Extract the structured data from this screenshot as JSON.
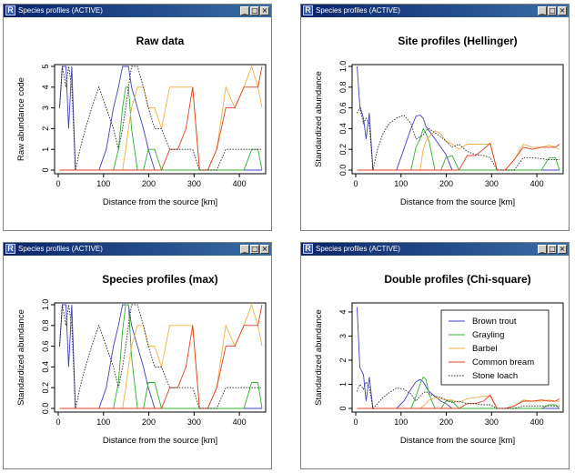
{
  "windows": [
    {
      "title": "Species profiles (ACTIVE)"
    },
    {
      "title": "Species profiles (ACTIVE)"
    },
    {
      "title": "Species profiles (ACTIVE)"
    },
    {
      "title": "Species profiles (ACTIVE)"
    }
  ],
  "window_buttons": {
    "minimize": "_",
    "maximize": "□",
    "close": "×"
  },
  "app_icon_letter": "R",
  "legend": {
    "entries": [
      "Brown trout",
      "Grayling",
      "Barbel",
      "Common bream",
      "Stone loach"
    ]
  },
  "chart_data": [
    {
      "type": "line",
      "title": "Raw data",
      "xlabel": "Distance from the source [km]",
      "ylabel": "Raw abundance code",
      "xlim": [
        0,
        450
      ],
      "ylim": [
        0,
        5
      ],
      "xticks": [
        0,
        100,
        200,
        300,
        400
      ],
      "yticks": [
        0,
        1,
        2,
        3,
        4,
        5
      ],
      "grid": false,
      "x": [
        3,
        9,
        17,
        23,
        30,
        38,
        48,
        60,
        74,
        90,
        106,
        122,
        133,
        142,
        149,
        155,
        162,
        175,
        188,
        199,
        213,
        228,
        246,
        264,
        282,
        297,
        312,
        330,
        350,
        370,
        390,
        410,
        427,
        441,
        450
      ],
      "series": [
        {
          "color": "#4040c0",
          "dash": "solid",
          "values": [
            3,
            5,
            5,
            2,
            5,
            0,
            0,
            0,
            0,
            0,
            1,
            3,
            4,
            5,
            5,
            5,
            4,
            3,
            2,
            1,
            0,
            0,
            0,
            0,
            0,
            0,
            0,
            0,
            0,
            0,
            0,
            0,
            0,
            0,
            0
          ]
        },
        {
          "color": "#30b030",
          "dash": "solid",
          "values": [
            0,
            0,
            0,
            0,
            0,
            0,
            0,
            0,
            0,
            0,
            0,
            0,
            1,
            3,
            4,
            4,
            2,
            0,
            0,
            1,
            1,
            0,
            0,
            0,
            0,
            0,
            0,
            0,
            0,
            0,
            0,
            0,
            1,
            1,
            0
          ]
        },
        {
          "color": "#f0b040",
          "dash": "solid",
          "values": [
            0,
            0,
            0,
            0,
            0,
            0,
            0,
            0,
            0,
            0,
            0,
            0,
            0,
            0,
            1,
            2,
            3,
            4,
            4,
            3,
            3,
            2,
            4,
            4,
            4,
            4,
            0,
            0,
            1,
            4,
            3,
            4,
            5,
            4,
            3
          ]
        },
        {
          "color": "#e04020",
          "dash": "solid",
          "values": [
            0,
            0,
            0,
            0,
            0,
            0,
            0,
            0,
            0,
            0,
            0,
            0,
            0,
            0,
            0,
            0,
            0,
            0,
            0,
            0,
            0,
            0,
            1,
            1,
            2,
            4,
            0,
            0,
            1,
            3,
            3,
            4,
            4,
            4,
            5
          ]
        },
        {
          "color": "#222222",
          "dash": "dotted",
          "values": [
            3,
            5,
            4,
            5,
            4,
            0,
            1,
            2,
            3,
            4,
            3,
            2,
            1,
            2,
            3,
            4,
            5,
            5,
            4,
            3,
            2,
            2,
            1,
            1,
            1,
            1,
            0,
            0,
            0,
            1,
            1,
            1,
            1,
            1,
            1
          ]
        }
      ]
    },
    {
      "type": "line",
      "title": "Site profiles (Hellinger)",
      "xlabel": "Distance from the source [km]",
      "ylabel": "Standardized abundance",
      "xlim": [
        0,
        450
      ],
      "ylim": [
        0,
        1
      ],
      "xticks": [
        0,
        100,
        200,
        300,
        400
      ],
      "yticks": [
        0.0,
        0.2,
        0.4,
        0.6,
        0.8,
        1.0
      ],
      "ytick_labels": [
        "0.0",
        "0.2",
        "0.4",
        "0.6",
        "0.8",
        "1.0"
      ],
      "grid": false,
      "x": [
        3,
        9,
        17,
        23,
        30,
        38,
        48,
        60,
        74,
        90,
        106,
        122,
        133,
        142,
        149,
        155,
        162,
        175,
        188,
        199,
        213,
        228,
        246,
        264,
        282,
        297,
        312,
        330,
        350,
        370,
        390,
        410,
        427,
        441,
        450
      ],
      "series": [
        {
          "color": "#4040c0",
          "dash": "solid",
          "values": [
            1.0,
            0.62,
            0.5,
            0.3,
            0.55,
            0.0,
            0.0,
            0.0,
            0.0,
            0.0,
            0.2,
            0.4,
            0.52,
            0.53,
            0.5,
            0.42,
            0.38,
            0.3,
            0.22,
            0.15,
            0.0,
            0.0,
            0.0,
            0.0,
            0.0,
            0.0,
            0.0,
            0.0,
            0.0,
            0.0,
            0.0,
            0.0,
            0.0,
            0.0,
            0.0
          ]
        },
        {
          "color": "#30b030",
          "dash": "solid",
          "values": [
            0,
            0,
            0,
            0,
            0,
            0,
            0,
            0,
            0,
            0,
            0,
            0,
            0.22,
            0.3,
            0.4,
            0.35,
            0.28,
            0.0,
            0.0,
            0.12,
            0.14,
            0.0,
            0.0,
            0.0,
            0.0,
            0.0,
            0.0,
            0.0,
            0.0,
            0.0,
            0.0,
            0.0,
            0.12,
            0.12,
            0.0
          ]
        },
        {
          "color": "#f0b040",
          "dash": "solid",
          "values": [
            0,
            0,
            0,
            0,
            0,
            0,
            0,
            0,
            0,
            0,
            0,
            0,
            0,
            0,
            0.2,
            0.28,
            0.32,
            0.38,
            0.35,
            0.28,
            0.25,
            0.2,
            0.25,
            0.25,
            0.25,
            0.25,
            0.0,
            0.0,
            0.1,
            0.25,
            0.22,
            0.22,
            0.24,
            0.22,
            0.2
          ]
        },
        {
          "color": "#e04020",
          "dash": "solid",
          "values": [
            0,
            0,
            0,
            0,
            0,
            0,
            0,
            0,
            0,
            0,
            0,
            0,
            0,
            0,
            0,
            0,
            0,
            0,
            0,
            0,
            0,
            0,
            0.14,
            0.14,
            0.2,
            0.26,
            0.0,
            0.0,
            0.1,
            0.22,
            0.2,
            0.22,
            0.22,
            0.22,
            0.25
          ]
        },
        {
          "color": "#222222",
          "dash": "dotted",
          "values": [
            0.55,
            0.6,
            0.45,
            0.5,
            0.45,
            0.0,
            0.2,
            0.35,
            0.45,
            0.5,
            0.53,
            0.45,
            0.3,
            0.32,
            0.34,
            0.38,
            0.4,
            0.36,
            0.32,
            0.28,
            0.22,
            0.25,
            0.18,
            0.15,
            0.14,
            0.12,
            0.0,
            0.0,
            0.0,
            0.12,
            0.12,
            0.11,
            0.1,
            0.1,
            0.1
          ]
        }
      ]
    },
    {
      "type": "line",
      "title": "Species profiles (max)",
      "xlabel": "Distance from the source [km]",
      "ylabel": "Standardized abundance",
      "xlim": [
        0,
        450
      ],
      "ylim": [
        0,
        1
      ],
      "xticks": [
        0,
        100,
        200,
        300,
        400
      ],
      "yticks": [
        0.0,
        0.2,
        0.4,
        0.6,
        0.8,
        1.0
      ],
      "ytick_labels": [
        "0.0",
        "0.2",
        "0.4",
        "0.6",
        "0.8",
        "1.0"
      ],
      "grid": false,
      "x": [
        3,
        9,
        17,
        23,
        30,
        38,
        48,
        60,
        74,
        90,
        106,
        122,
        133,
        142,
        149,
        155,
        162,
        175,
        188,
        199,
        213,
        228,
        246,
        264,
        282,
        297,
        312,
        330,
        350,
        370,
        390,
        410,
        427,
        441,
        450
      ],
      "series": [
        {
          "color": "#4040c0",
          "dash": "solid",
          "values": [
            0.6,
            1.0,
            1.0,
            0.4,
            1.0,
            0,
            0,
            0,
            0,
            0,
            0.2,
            0.6,
            0.8,
            1.0,
            1.0,
            1.0,
            0.8,
            0.6,
            0.4,
            0.2,
            0,
            0,
            0,
            0,
            0,
            0,
            0,
            0,
            0,
            0,
            0,
            0,
            0,
            0,
            0
          ]
        },
        {
          "color": "#30b030",
          "dash": "solid",
          "values": [
            0,
            0,
            0,
            0,
            0,
            0,
            0,
            0,
            0,
            0,
            0,
            0,
            0.25,
            0.75,
            1.0,
            1.0,
            0.5,
            0,
            0,
            0.25,
            0.25,
            0,
            0,
            0,
            0,
            0,
            0,
            0,
            0,
            0,
            0,
            0,
            0.25,
            0.25,
            0
          ]
        },
        {
          "color": "#f0b040",
          "dash": "solid",
          "values": [
            0,
            0,
            0,
            0,
            0,
            0,
            0,
            0,
            0,
            0,
            0,
            0,
            0,
            0,
            0.2,
            0.4,
            0.6,
            0.8,
            0.8,
            0.6,
            0.6,
            0.4,
            0.8,
            0.8,
            0.8,
            0.8,
            0,
            0,
            0.2,
            0.8,
            0.6,
            0.8,
            1.0,
            0.8,
            0.6
          ]
        },
        {
          "color": "#e04020",
          "dash": "solid",
          "values": [
            0,
            0,
            0,
            0,
            0,
            0,
            0,
            0,
            0,
            0,
            0,
            0,
            0,
            0,
            0,
            0,
            0,
            0,
            0,
            0,
            0,
            0,
            0.2,
            0.2,
            0.4,
            0.8,
            0,
            0,
            0.2,
            0.6,
            0.6,
            0.8,
            0.8,
            0.8,
            1.0
          ]
        },
        {
          "color": "#222222",
          "dash": "dotted",
          "values": [
            0.6,
            1.0,
            0.8,
            1.0,
            0.8,
            0,
            0.2,
            0.4,
            0.6,
            0.8,
            0.6,
            0.4,
            0.2,
            0.4,
            0.6,
            0.8,
            1.0,
            1.0,
            0.8,
            0.6,
            0.4,
            0.4,
            0.2,
            0.2,
            0.2,
            0.2,
            0,
            0,
            0,
            0.2,
            0.2,
            0.2,
            0.2,
            0.2,
            0.2
          ]
        }
      ]
    },
    {
      "type": "line",
      "title": "Double profiles (Chi-square)",
      "xlabel": "Distance from the source [km]",
      "ylabel": "Standardized abundance",
      "xlim": [
        0,
        450
      ],
      "ylim": [
        0,
        4.3
      ],
      "xticks": [
        0,
        100,
        200,
        300,
        400
      ],
      "yticks": [
        0,
        1,
        2,
        3,
        4
      ],
      "grid": false,
      "legend_position": "top-right",
      "x": [
        3,
        9,
        17,
        23,
        30,
        38,
        48,
        60,
        74,
        90,
        106,
        122,
        133,
        142,
        149,
        155,
        162,
        175,
        188,
        199,
        213,
        228,
        246,
        264,
        282,
        297,
        312,
        330,
        350,
        370,
        390,
        410,
        427,
        441,
        450
      ],
      "series": [
        {
          "color": "#4040c0",
          "dash": "solid",
          "values": [
            4.2,
            1.7,
            1.4,
            0.3,
            1.3,
            0,
            0,
            0,
            0,
            0,
            0.3,
            0.8,
            1.1,
            1.2,
            1.1,
            0.9,
            0.7,
            0.5,
            0.3,
            0.2,
            0,
            0,
            0,
            0,
            0,
            0,
            0,
            0,
            0,
            0,
            0,
            0,
            0,
            0,
            0
          ]
        },
        {
          "color": "#30b030",
          "dash": "solid",
          "values": [
            0,
            0,
            0,
            0,
            0,
            0,
            0,
            0,
            0,
            0,
            0,
            0,
            0.5,
            1.0,
            1.3,
            1.2,
            0.6,
            0,
            0,
            0.3,
            0.3,
            0,
            0,
            0,
            0,
            0,
            0,
            0,
            0,
            0,
            0,
            0,
            0.15,
            0.15,
            0
          ]
        },
        {
          "color": "#f0b040",
          "dash": "solid",
          "values": [
            0,
            0,
            0,
            0,
            0,
            0,
            0,
            0,
            0,
            0,
            0,
            0,
            0,
            0,
            0.1,
            0.2,
            0.35,
            0.45,
            0.4,
            0.35,
            0.35,
            0.25,
            0.4,
            0.45,
            0.5,
            0.5,
            0,
            0,
            0.1,
            0.35,
            0.3,
            0.3,
            0.35,
            0.3,
            0.3
          ]
        },
        {
          "color": "#e04020",
          "dash": "solid",
          "values": [
            0,
            0,
            0,
            0,
            0,
            0,
            0,
            0,
            0,
            0,
            0,
            0,
            0,
            0,
            0,
            0,
            0,
            0,
            0,
            0,
            0,
            0,
            0.2,
            0.2,
            0.3,
            0.55,
            0,
            0,
            0.1,
            0.3,
            0.3,
            0.35,
            0.3,
            0.3,
            0.4
          ]
        },
        {
          "color": "#222222",
          "dash": "dotted",
          "values": [
            0.7,
            1.0,
            0.8,
            1.1,
            0.9,
            0,
            0.2,
            0.45,
            0.65,
            0.85,
            0.8,
            0.6,
            0.3,
            0.5,
            0.65,
            0.7,
            0.6,
            0.5,
            0.45,
            0.35,
            0.25,
            0.3,
            0.2,
            0.2,
            0.15,
            0.15,
            0,
            0,
            0,
            0.1,
            0.1,
            0.1,
            0.1,
            0.1,
            0.1
          ]
        }
      ]
    }
  ]
}
